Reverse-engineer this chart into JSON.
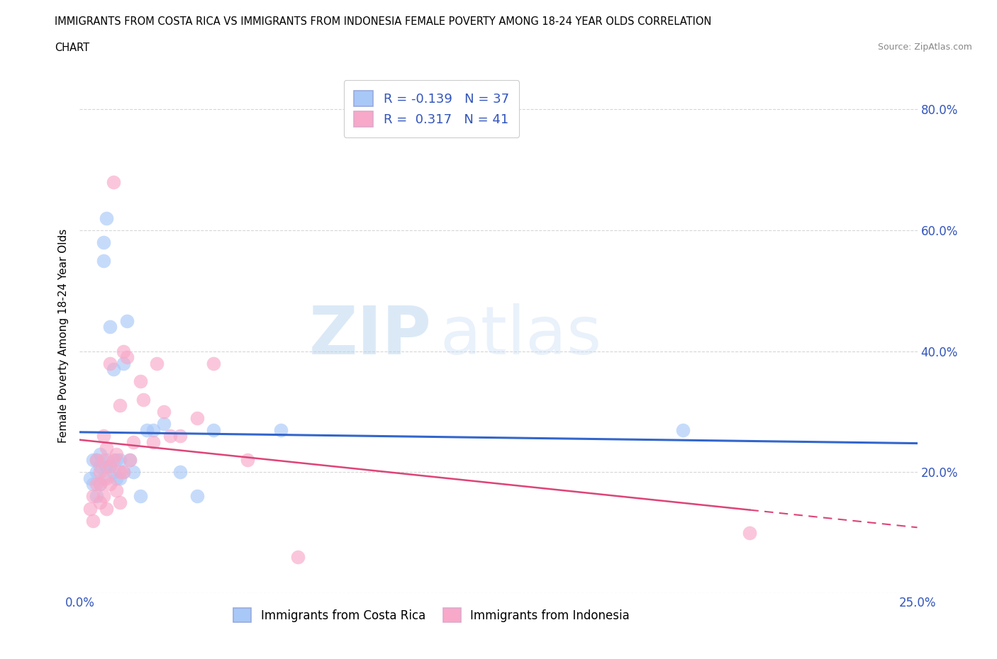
{
  "title_line1": "IMMIGRANTS FROM COSTA RICA VS IMMIGRANTS FROM INDONESIA FEMALE POVERTY AMONG 18-24 YEAR OLDS CORRELATION",
  "title_line2": "CHART",
  "source": "Source: ZipAtlas.com",
  "ylabel": "Female Poverty Among 18-24 Year Olds",
  "xlim": [
    0.0,
    0.25
  ],
  "ylim": [
    0.0,
    0.85
  ],
  "x_ticks": [
    0.0,
    0.05,
    0.1,
    0.15,
    0.2,
    0.25
  ],
  "x_tick_labels": [
    "0.0%",
    "",
    "",
    "",
    "",
    "25.0%"
  ],
  "y_ticks": [
    0.0,
    0.2,
    0.4,
    0.6,
    0.8
  ],
  "y_tick_labels_right": [
    "",
    "20.0%",
    "40.0%",
    "60.0%",
    "80.0%"
  ],
  "legend_label1": "Immigrants from Costa Rica",
  "legend_label2": "Immigrants from Indonesia",
  "r1": "-0.139",
  "n1": "37",
  "r2": "0.317",
  "n2": "41",
  "color_cr": "#a8c8f8",
  "color_indo": "#f8a8c8",
  "trendline_cr_color": "#3366cc",
  "trendline_indo_color": "#dd4477",
  "background_color": "#ffffff",
  "costa_rica_x": [
    0.003,
    0.004,
    0.004,
    0.005,
    0.005,
    0.005,
    0.006,
    0.006,
    0.006,
    0.007,
    0.007,
    0.007,
    0.008,
    0.008,
    0.008,
    0.009,
    0.009,
    0.01,
    0.01,
    0.011,
    0.011,
    0.012,
    0.012,
    0.013,
    0.013,
    0.014,
    0.015,
    0.016,
    0.018,
    0.02,
    0.022,
    0.025,
    0.03,
    0.035,
    0.04,
    0.06,
    0.18
  ],
  "costa_rica_y": [
    0.19,
    0.18,
    0.22,
    0.16,
    0.2,
    0.22,
    0.18,
    0.21,
    0.23,
    0.19,
    0.55,
    0.58,
    0.21,
    0.22,
    0.62,
    0.44,
    0.21,
    0.37,
    0.2,
    0.19,
    0.22,
    0.19,
    0.22,
    0.2,
    0.38,
    0.45,
    0.22,
    0.2,
    0.16,
    0.27,
    0.27,
    0.28,
    0.2,
    0.16,
    0.27,
    0.27,
    0.27
  ],
  "indonesia_x": [
    0.003,
    0.004,
    0.004,
    0.005,
    0.005,
    0.006,
    0.006,
    0.006,
    0.007,
    0.007,
    0.007,
    0.008,
    0.008,
    0.008,
    0.009,
    0.009,
    0.009,
    0.01,
    0.01,
    0.011,
    0.011,
    0.012,
    0.012,
    0.012,
    0.013,
    0.013,
    0.014,
    0.015,
    0.016,
    0.018,
    0.019,
    0.022,
    0.023,
    0.025,
    0.027,
    0.03,
    0.035,
    0.04,
    0.05,
    0.065,
    0.2
  ],
  "indonesia_y": [
    0.14,
    0.12,
    0.16,
    0.18,
    0.22,
    0.15,
    0.18,
    0.2,
    0.16,
    0.22,
    0.26,
    0.14,
    0.19,
    0.24,
    0.18,
    0.21,
    0.38,
    0.22,
    0.68,
    0.23,
    0.17,
    0.15,
    0.2,
    0.31,
    0.2,
    0.4,
    0.39,
    0.22,
    0.25,
    0.35,
    0.32,
    0.25,
    0.38,
    0.3,
    0.26,
    0.26,
    0.29,
    0.38,
    0.22,
    0.06,
    0.1
  ]
}
